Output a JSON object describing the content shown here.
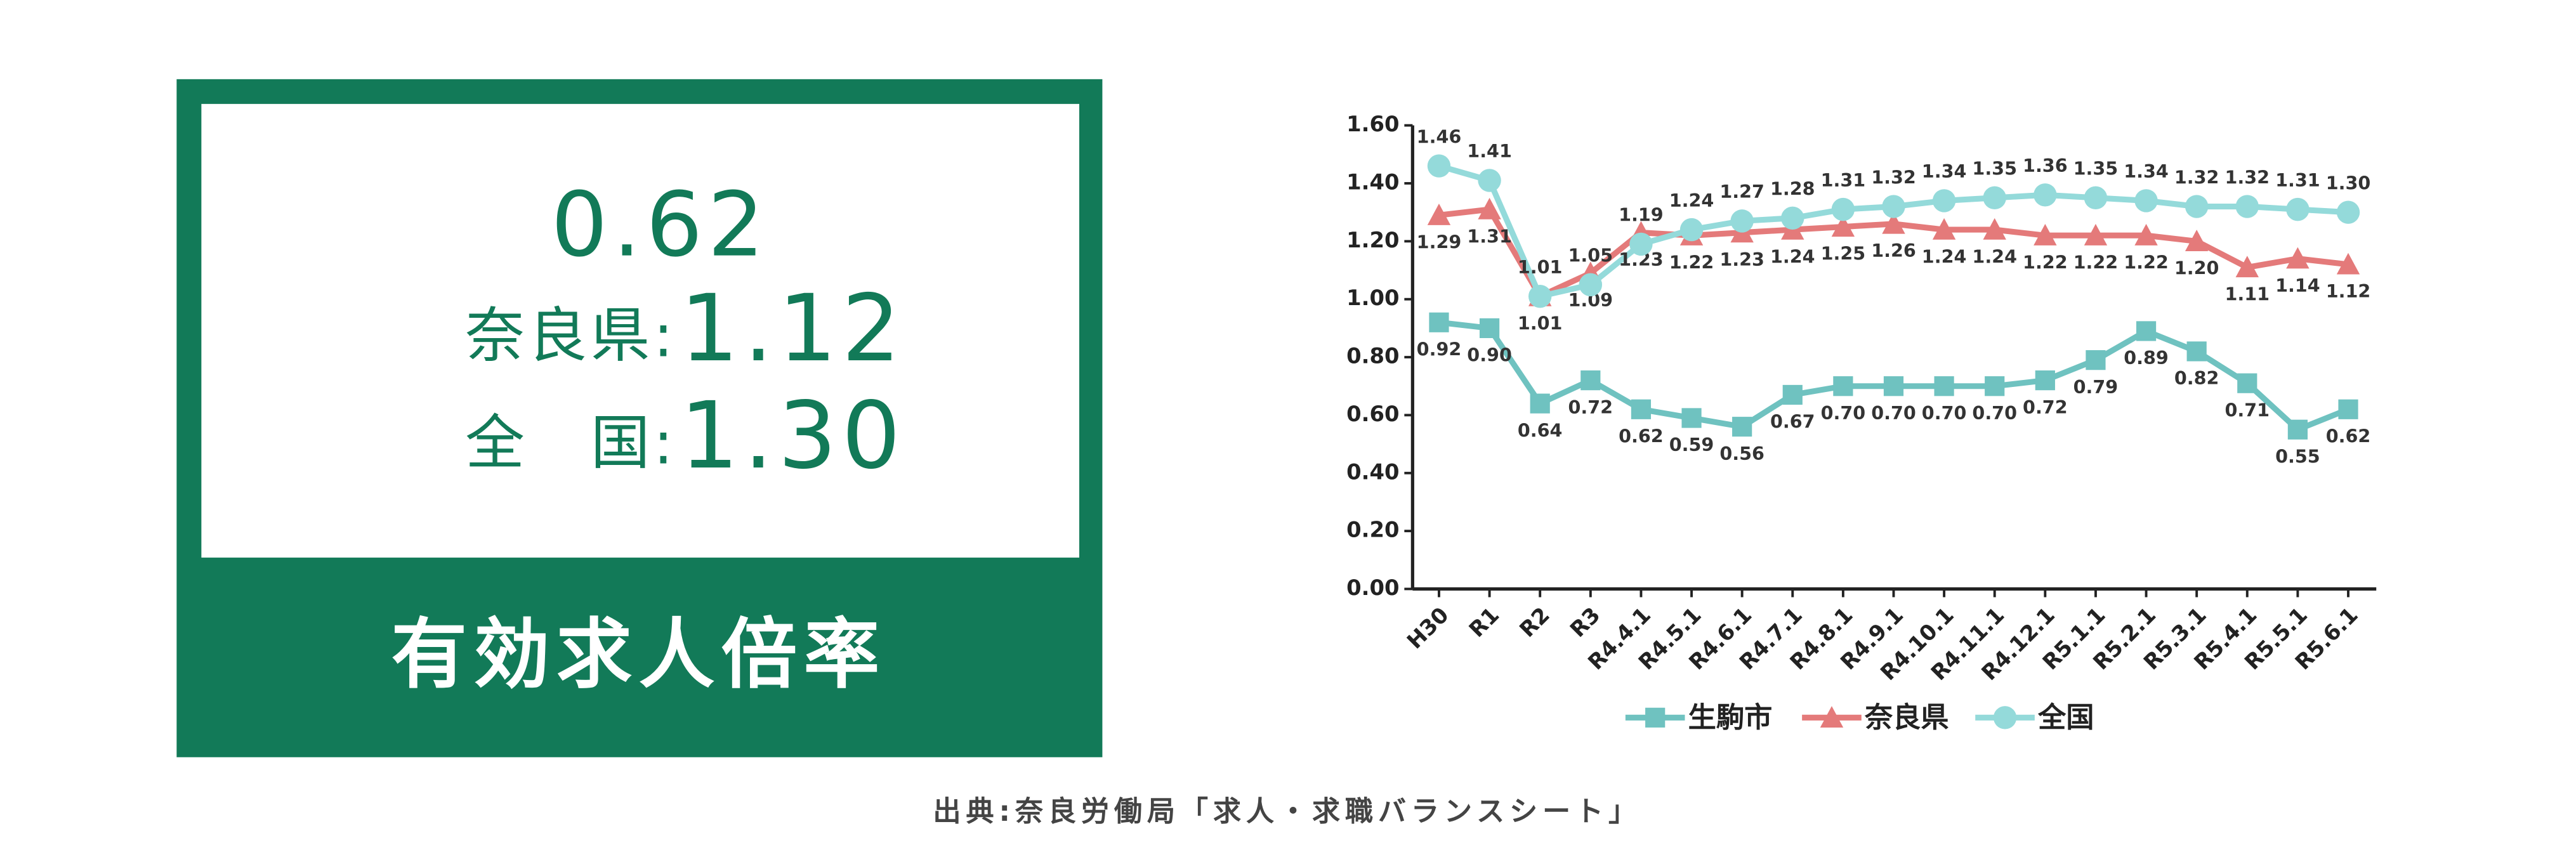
{
  "panel": {
    "main": "0.62",
    "rows": [
      {
        "label": "奈良県:",
        "value": "1.12"
      },
      {
        "label": "全　国:",
        "value": "1.30"
      }
    ],
    "caption": "有効求人倍率"
  },
  "chart_data": {
    "type": "line",
    "categories": [
      "H30",
      "R1",
      "R2",
      "R3",
      "R4.4.1",
      "R4.5.1",
      "R4.6.1",
      "R4.7.1",
      "R4.8.1",
      "R4.9.1",
      "R4.10.1",
      "R4.11.1",
      "R4.12.1",
      "R5.1.1",
      "R5.2.1",
      "R5.3.1",
      "R5.4.1",
      "R5.5.1",
      "R5.6.1"
    ],
    "series": [
      {
        "name": "生駒市",
        "color": "#6fc2c0",
        "marker": "square",
        "values": [
          0.92,
          0.9,
          0.64,
          0.72,
          0.62,
          0.59,
          0.56,
          0.67,
          0.7,
          0.7,
          0.7,
          0.7,
          0.72,
          0.79,
          0.89,
          0.82,
          0.71,
          0.55,
          0.62
        ],
        "value_labels": [
          "0.92",
          "0.90",
          "0.64",
          "0.72",
          "0.62",
          "0.59",
          "0.56",
          "0.67",
          "0.70",
          "0.70",
          "0.70",
          "0.70",
          "0.72",
          "0.79",
          "0.89",
          "0.82",
          "0.71",
          "0.55",
          "0.62"
        ]
      },
      {
        "name": "奈良県",
        "color": "#e47a7a",
        "marker": "triangle",
        "values": [
          1.29,
          1.31,
          1.01,
          1.09,
          1.23,
          1.22,
          1.23,
          1.24,
          1.25,
          1.26,
          1.24,
          1.24,
          1.22,
          1.22,
          1.22,
          1.2,
          1.11,
          1.14,
          1.12
        ],
        "value_labels": [
          "1.29",
          "1.31",
          "1.01",
          "1.09",
          "1.23",
          "1.22",
          "1.23",
          "1.24",
          "1.25",
          "1.26",
          "1.24",
          "1.24",
          "1.22",
          "1.22",
          "1.22",
          "1.20",
          "1.11",
          "1.14",
          "1.12"
        ]
      },
      {
        "name": "全国",
        "color": "#94dada",
        "marker": "circle",
        "values": [
          1.46,
          1.41,
          1.01,
          1.05,
          1.19,
          1.24,
          1.27,
          1.28,
          1.31,
          1.32,
          1.34,
          1.35,
          1.36,
          1.35,
          1.34,
          1.32,
          1.32,
          1.31,
          1.3
        ],
        "value_labels": [
          "1.46",
          "1.41",
          "1.01",
          "1.05",
          "1.19",
          "1.24",
          "1.27",
          "1.28",
          "1.31",
          "1.32",
          "1.34",
          "1.35",
          "1.36",
          "1.35",
          "1.34",
          "1.32",
          "1.32",
          "1.31",
          "1.30"
        ]
      }
    ],
    "ylim": [
      0,
      1.6
    ],
    "yticks": [
      {
        "value": 0,
        "label": "0.00"
      },
      {
        "value": 0.2,
        "label": "0.20"
      },
      {
        "value": 0.4,
        "label": "0.40"
      },
      {
        "value": 0.6,
        "label": "0.60"
      },
      {
        "value": 0.8,
        "label": "0.80"
      },
      {
        "value": 1,
        "label": "1.00"
      },
      {
        "value": 1.2,
        "label": "1.20"
      },
      {
        "value": 1.4,
        "label": "1.40"
      },
      {
        "value": 1.6,
        "label": "1.60"
      }
    ],
    "legend": "bottom"
  },
  "source": "出典:奈良労働局「求人・求職バランスシート」"
}
